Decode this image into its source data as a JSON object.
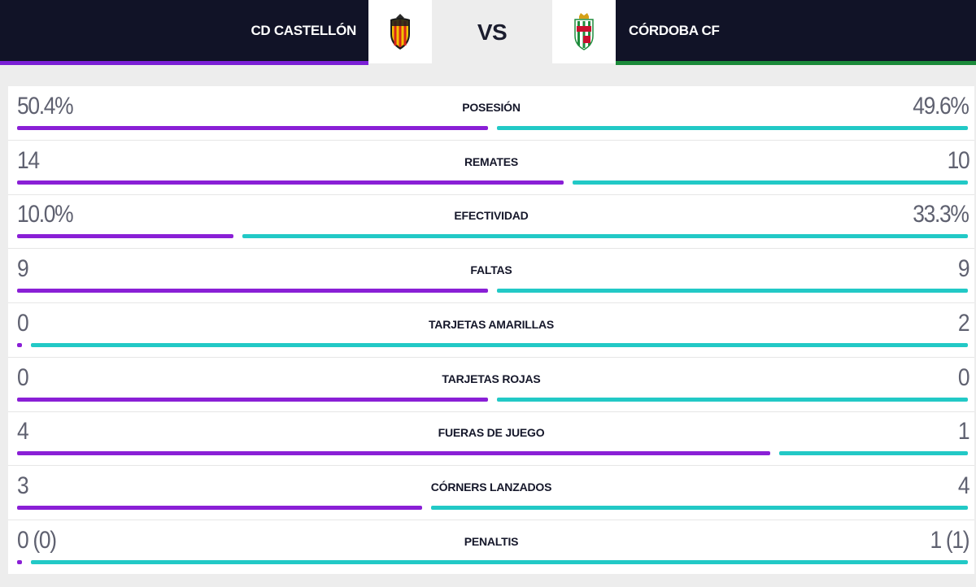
{
  "match": {
    "home_team": "CD CASTELLÓN",
    "away_team": "CÓRDOBA CF",
    "vs_label": "VS"
  },
  "colors": {
    "home_bar": "#8a1fd6",
    "away_bar": "#22c9c6",
    "header_bg": "#111327",
    "home_accent": "#7b1fd6",
    "away_accent": "#1b8a3a"
  },
  "stats": [
    {
      "label": "POSESIÓN",
      "home": "50.4%",
      "away": "49.6%",
      "home_share": 0.5
    },
    {
      "label": "REMATES",
      "home": "14",
      "away": "10",
      "home_share": 0.58
    },
    {
      "label": "EFECTIVIDAD",
      "home": "10.0%",
      "away": "33.3%",
      "home_share": 0.23
    },
    {
      "label": "FALTAS",
      "home": "9",
      "away": "9",
      "home_share": 0.5
    },
    {
      "label": "TARJETAS AMARILLAS",
      "home": "0",
      "away": "2",
      "home_share": 0.0
    },
    {
      "label": "TARJETAS ROJAS",
      "home": "0",
      "away": "0",
      "home_share": 0.5
    },
    {
      "label": "FUERAS DE JUEGO",
      "home": "4",
      "away": "1",
      "home_share": 0.8
    },
    {
      "label": "CÓRNERS LANZADOS",
      "home": "3",
      "away": "4",
      "home_share": 0.43
    },
    {
      "label": "PENALTIS",
      "home": "0 (0)",
      "away": "1 (1)",
      "home_share": 0.0
    }
  ]
}
